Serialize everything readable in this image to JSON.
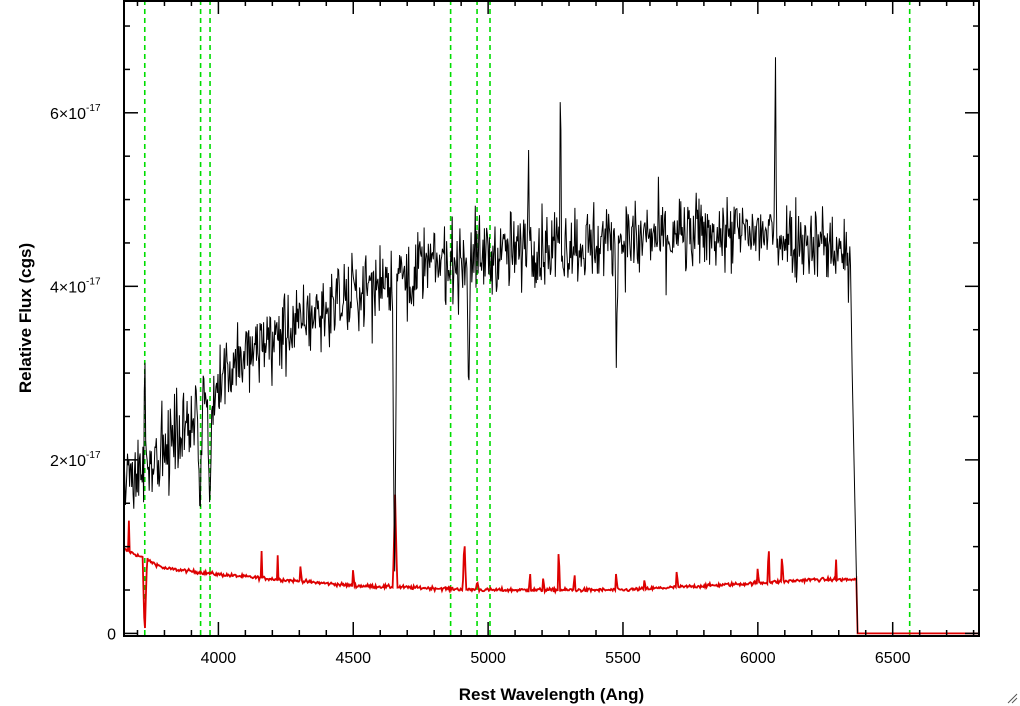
{
  "chart_data": {
    "type": "line",
    "xlabel": "Rest Wavelength (Ang)",
    "ylabel": "Relative Flux (cgs)",
    "xlim": [
      3650,
      6820
    ],
    "ylim": [
      -3e-19,
      7.3e-17
    ],
    "x_ticks": [
      {
        "value": 4000,
        "label": "4000"
      },
      {
        "value": 4500,
        "label": "4500"
      },
      {
        "value": 5000,
        "label": "5000"
      },
      {
        "value": 5500,
        "label": "5500"
      },
      {
        "value": 6000,
        "label": "6000"
      },
      {
        "value": 6500,
        "label": "6500"
      }
    ],
    "y_ticks": [
      {
        "value": 0,
        "label": "0",
        "mant": "",
        "times": "",
        "base": "",
        "exp": ""
      },
      {
        "value": 2e-17,
        "label": "",
        "mant": "2",
        "times": "×",
        "base": "10",
        "exp": "-17"
      },
      {
        "value": 4e-17,
        "label": "",
        "mant": "4",
        "times": "×",
        "base": "10",
        "exp": "-17"
      },
      {
        "value": 6e-17,
        "label": "",
        "mant": "6",
        "times": "×",
        "base": "10",
        "exp": "-17"
      }
    ],
    "reference_lines": {
      "color": "#00dd00",
      "style": "dashed",
      "x": [
        3727,
        3934,
        3969,
        4861,
        4959,
        5007,
        6563
      ]
    },
    "series": [
      {
        "color": "#000000",
        "continuum_x": [
          3650,
          3700,
          3800,
          3900,
          4000,
          4200,
          4400,
          4600,
          4800,
          5000,
          5200,
          5400,
          5600,
          5800,
          6000,
          6200,
          6320,
          6345
        ],
        "continuum_y": [
          1.8e-17,
          1.9e-17,
          2.1e-17,
          2.5e-17,
          2.95e-17,
          3.4e-17,
          3.75e-17,
          4.05e-17,
          4.25e-17,
          4.35e-17,
          4.45e-17,
          4.5e-17,
          4.55e-17,
          4.6e-17,
          4.6e-17,
          4.55e-17,
          4.4e-17,
          4.3e-17
        ],
        "noise_sigma": 3.8e-18,
        "cutoff_x": [
          6350,
          6370
        ],
        "cutoff_y": [
          3e-17,
          0.0
        ],
        "features": [
          {
            "x": 3727,
            "y": 3.55e-17,
            "width": 4
          },
          {
            "x": 3932,
            "y": 1.3e-17,
            "width": 10
          },
          {
            "x": 3968,
            "y": 1.4e-17,
            "width": 10
          },
          {
            "x": 4653,
            "y": 4.5e-18,
            "width": 8
          },
          {
            "x": 4928,
            "y": 2.6e-17,
            "width": 6
          },
          {
            "x": 5150,
            "y": 5.65e-17,
            "width": 4
          },
          {
            "x": 5268,
            "y": 6.55e-17,
            "width": 4
          },
          {
            "x": 5475,
            "y": 3e-17,
            "width": 4
          },
          {
            "x": 6065,
            "y": 6.9e-17,
            "width": 4
          }
        ]
      },
      {
        "color": "#dd0000",
        "continuum_x": [
          3650,
          3700,
          3800,
          4000,
          4500,
          5000,
          5200,
          5500,
          6000,
          6200,
          6350,
          6365
        ],
        "continuum_y": [
          9.7e-18,
          9e-18,
          7.5e-18,
          6.8e-18,
          5.5e-18,
          5e-18,
          5e-18,
          5e-18,
          5.8e-18,
          6.2e-18,
          6.2e-18,
          6.2e-18
        ],
        "noise_sigma": 1.5e-19,
        "cutoff_x": [
          6370,
          6820
        ],
        "cutoff_y": [
          0.0,
          0.0
        ],
        "features": [
          {
            "x": 3668,
            "y": 1.3e-17,
            "width": 3
          },
          {
            "x": 3727,
            "y": -5e-19,
            "width": 8
          },
          {
            "x": 4160,
            "y": 9.5e-18,
            "width": 3
          },
          {
            "x": 4220,
            "y": 9e-18,
            "width": 3
          },
          {
            "x": 4305,
            "y": 8.7e-18,
            "width": 3
          },
          {
            "x": 4500,
            "y": 8.2e-18,
            "width": 3
          },
          {
            "x": 4655,
            "y": 1.6e-17,
            "width": 8
          },
          {
            "x": 4912,
            "y": 1.1e-17,
            "width": 6
          },
          {
            "x": 4960,
            "y": 6e-18,
            "width": 6
          },
          {
            "x": 5155,
            "y": 7.8e-18,
            "width": 3
          },
          {
            "x": 5205,
            "y": 7e-18,
            "width": 3
          },
          {
            "x": 5262,
            "y": 1.05e-17,
            "width": 4
          },
          {
            "x": 5320,
            "y": 7.5e-18,
            "width": 3
          },
          {
            "x": 5475,
            "y": 7.8e-18,
            "width": 3
          },
          {
            "x": 5580,
            "y": 6.5e-18,
            "width": 3
          },
          {
            "x": 5700,
            "y": 8e-18,
            "width": 3
          },
          {
            "x": 6000,
            "y": 8.2e-18,
            "width": 3
          },
          {
            "x": 6040,
            "y": 1.07e-17,
            "width": 4
          },
          {
            "x": 6090,
            "y": 9.5e-18,
            "width": 4
          },
          {
            "x": 6290,
            "y": 8.5e-18,
            "width": 3
          }
        ]
      }
    ]
  }
}
